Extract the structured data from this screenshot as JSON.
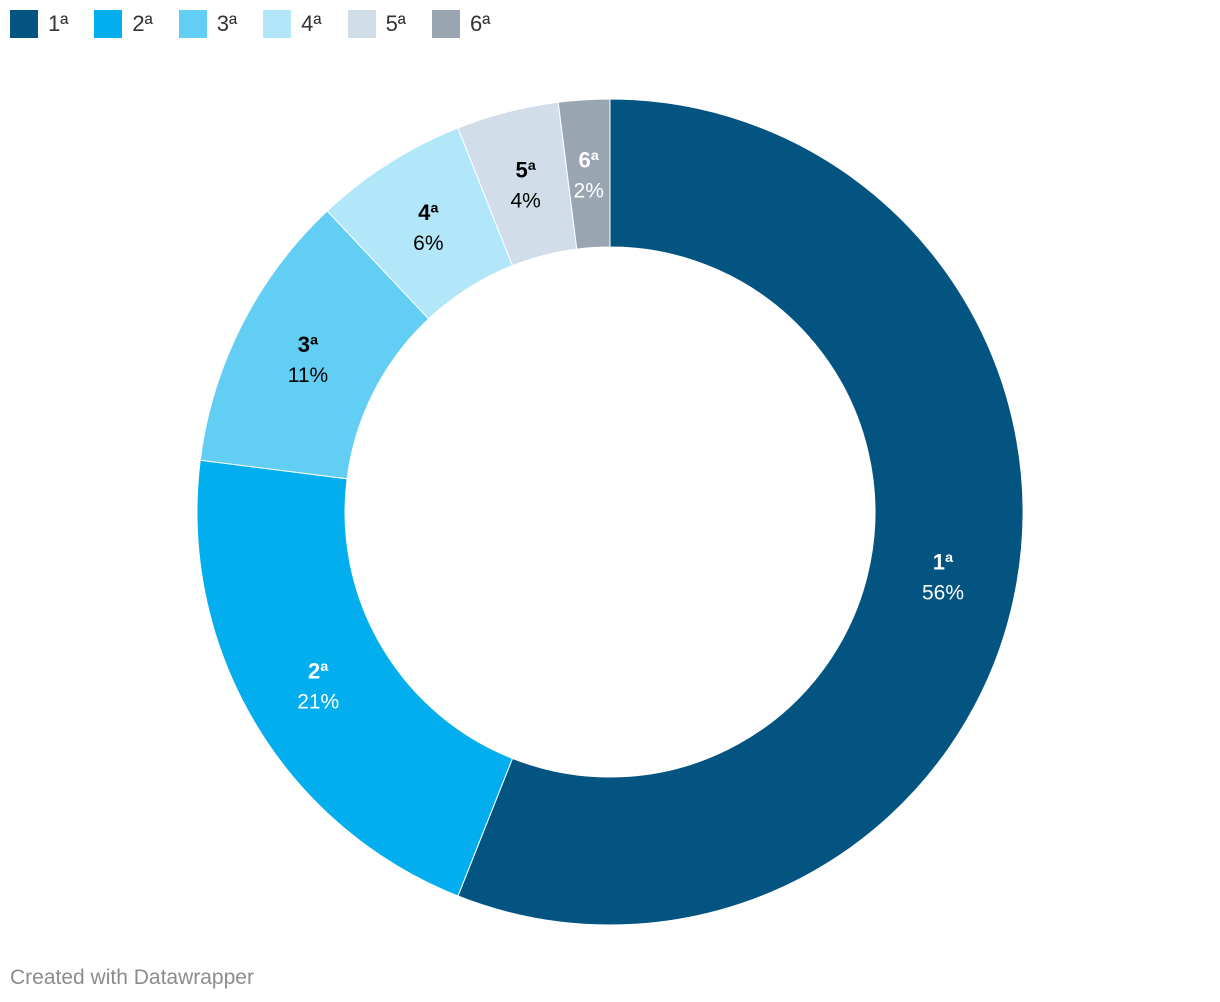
{
  "chart_data": {
    "type": "pie",
    "donut": true,
    "categories": [
      "1ª",
      "2ª",
      "3ª",
      "4ª",
      "5ª",
      "6ª"
    ],
    "values": [
      56,
      21,
      11,
      6,
      4,
      2
    ],
    "value_labels": [
      "56%",
      "21%",
      "11%",
      "6%",
      "4%",
      "2%"
    ],
    "colors": [
      "#045482",
      "#02aeee",
      "#63cef3",
      "#b2e6f9",
      "#d1deea",
      "#99a5b1"
    ],
    "label_colors": [
      "#ffffff",
      "#ffffff",
      "#000000",
      "#000000",
      "#000000",
      "#ffffff"
    ],
    "legend_position": "top-left"
  },
  "credit": "Created with Datawrapper"
}
